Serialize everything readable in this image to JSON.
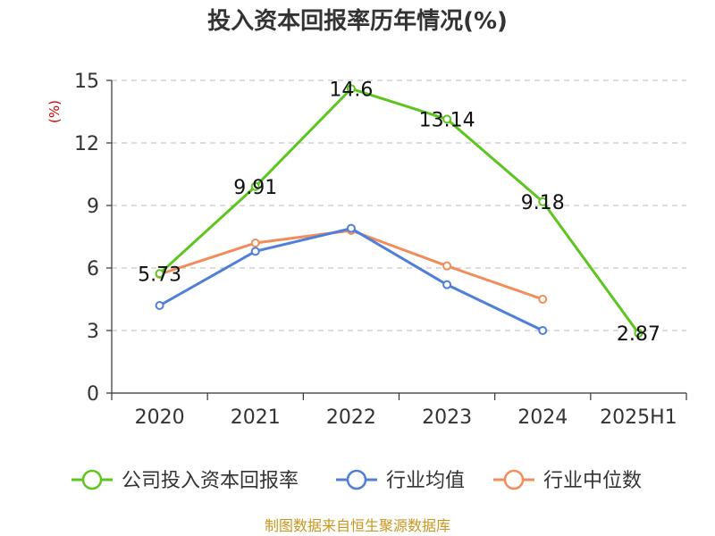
{
  "chart_data": {
    "type": "line",
    "title": "投入资本回报率历年情况(%)",
    "ylabel": "(%)",
    "xlabel": "",
    "categories": [
      "2020",
      "2021",
      "2022",
      "2023",
      "2024",
      "2025H1"
    ],
    "ylim": [
      0,
      15
    ],
    "yticks": [
      0,
      3,
      6,
      9,
      12,
      15
    ],
    "grid": true,
    "legend_position": "bottom",
    "series": [
      {
        "name": "公司投入资本回报率",
        "color": "#5cc51e",
        "values": [
          5.73,
          9.91,
          14.6,
          13.14,
          9.18,
          2.87
        ],
        "labels": [
          "5.73",
          "9.91",
          "14.6",
          "13.14",
          "9.18",
          "2.87"
        ]
      },
      {
        "name": "行业均值",
        "color": "#4f7fd8",
        "values": [
          4.2,
          6.8,
          7.9,
          5.2,
          3.0,
          null
        ]
      },
      {
        "name": "行业中位数",
        "color": "#f28c5a",
        "values": [
          5.7,
          7.2,
          7.8,
          6.1,
          4.5,
          null
        ]
      }
    ],
    "source": "制图数据来自恒生聚源数据库"
  }
}
